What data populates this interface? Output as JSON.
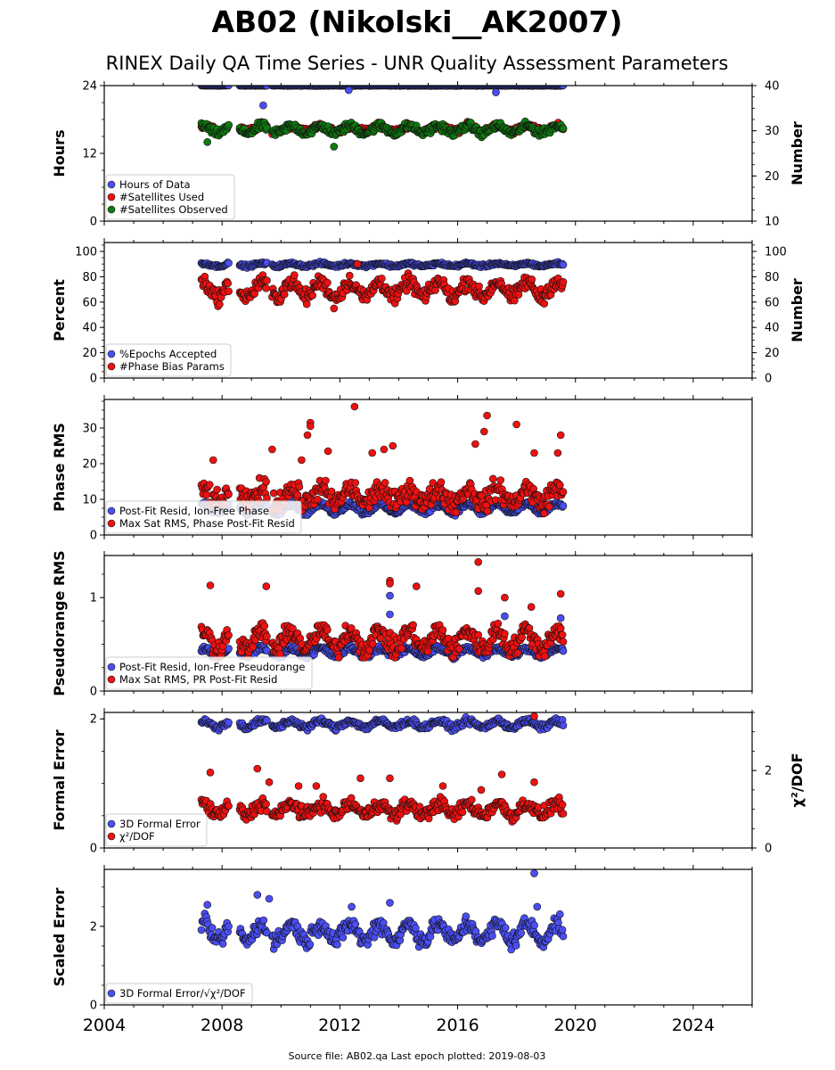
{
  "header": {
    "title": "AB02 (Nikolski__AK2007)",
    "subtitle": "RINEX Daily QA Time Series - UNR Quality Assessment Parameters"
  },
  "footer": {
    "text": "Source file: AB02.qa Last epoch plotted: 2019-08-03"
  },
  "colors": {
    "blue": "#4a4ef2",
    "red": "#ee1111",
    "green": "#0f7a0f",
    "edge": "#111111"
  },
  "x_axis": {
    "range": [
      2004,
      2026
    ],
    "ticks": [
      2004,
      2008,
      2012,
      2016,
      2020,
      2024
    ],
    "tick_labels": [
      "2004",
      "2008",
      "2012",
      "2016",
      "2020",
      "2024"
    ]
  },
  "chart_data": [
    {
      "type": "scatter",
      "ylabel": "Hours",
      "ylabel_right": "Number",
      "ylim": [
        0,
        24
      ],
      "yticks": [
        0,
        12,
        24
      ],
      "ytick_labels": [
        "0",
        "12",
        "24"
      ],
      "ylim_right": [
        10,
        40
      ],
      "yticks_right": [
        10,
        20,
        30,
        40
      ],
      "ytick_labels_right": [
        "10",
        "20",
        "30",
        "40"
      ],
      "legend_position": "lower-left",
      "series": [
        {
          "name": "Hours of Data",
          "color": "blue",
          "axis": "left",
          "base": 24,
          "amp": 0,
          "noise": 0.05,
          "outliers": [
            [
              2009.4,
              20.5
            ],
            [
              2012.3,
              23.2
            ],
            [
              2017.3,
              22.8
            ]
          ]
        },
        {
          "name": "#Satellites Used",
          "color": "red",
          "axis": "right",
          "base": 30.5,
          "amp": 0.6,
          "noise": 0.6,
          "outliers": []
        },
        {
          "name": "#Satellites Observed",
          "color": "green",
          "axis": "right",
          "base": 30.3,
          "amp": 0.8,
          "noise": 0.7,
          "outliers": [
            [
              2007.5,
              27.5
            ],
            [
              2011.8,
              26.5
            ]
          ]
        }
      ]
    },
    {
      "type": "scatter",
      "ylabel": "Percent",
      "ylabel_right": "Number",
      "ylim": [
        0,
        107
      ],
      "yticks": [
        0,
        20,
        40,
        60,
        80,
        100
      ],
      "ytick_labels": [
        "0",
        "20",
        "40",
        "60",
        "80",
        "100"
      ],
      "ylim_right": [
        0,
        107
      ],
      "yticks_right": [
        0,
        20,
        40,
        60,
        80,
        100
      ],
      "ytick_labels_right": [
        "0",
        "20",
        "40",
        "60",
        "80",
        "100"
      ],
      "legend_position": "lower-left",
      "series": [
        {
          "name": "%Epochs Accepted",
          "color": "blue",
          "axis": "left",
          "base": 89.5,
          "amp": 1.0,
          "noise": 1.0,
          "outliers": []
        },
        {
          "name": "#Phase Bias Params",
          "color": "red",
          "axis": "right",
          "base": 70,
          "amp": 6,
          "noise": 5,
          "outliers": [
            [
              2011.8,
              55
            ],
            [
              2012.6,
              90
            ]
          ]
        }
      ]
    },
    {
      "type": "scatter",
      "ylabel": "Phase RMS",
      "ylim": [
        0,
        38
      ],
      "yticks": [
        0,
        10,
        20,
        30
      ],
      "ytick_labels": [
        "0",
        "10",
        "20",
        "30"
      ],
      "legend_position": "lower-left",
      "series": [
        {
          "name": "Post-Fit Resid, Ion-Free Phase",
          "color": "blue",
          "axis": "left",
          "base": 7.5,
          "amp": 1.2,
          "noise": 0.7,
          "outliers": []
        },
        {
          "name": "Max Sat RMS, Phase Post-Fit Resid",
          "color": "red",
          "axis": "left",
          "base": 11,
          "amp": 2,
          "noise": 2.5,
          "outliers": [
            [
              2007.7,
              21
            ],
            [
              2009.7,
              24
            ],
            [
              2010.7,
              21
            ],
            [
              2010.9,
              28
            ],
            [
              2011.0,
              31.5
            ],
            [
              2011.0,
              30.5
            ],
            [
              2011.6,
              23.5
            ],
            [
              2012.5,
              36
            ],
            [
              2013.1,
              23
            ],
            [
              2013.5,
              24
            ],
            [
              2013.8,
              25
            ],
            [
              2016.6,
              25.5
            ],
            [
              2016.9,
              29
            ],
            [
              2017.0,
              33.5
            ],
            [
              2018.0,
              31
            ],
            [
              2018.6,
              23
            ],
            [
              2019.4,
              23
            ],
            [
              2019.5,
              28
            ]
          ]
        }
      ]
    },
    {
      "type": "scatter",
      "ylabel": "Pseudorange RMS",
      "ylim": [
        0,
        1.45
      ],
      "yticks": [
        0,
        1
      ],
      "ytick_labels": [
        "0",
        "1"
      ],
      "legend_position": "lower-left",
      "series": [
        {
          "name": "Post-Fit Resid, Ion-Free Pseudorange",
          "color": "blue",
          "axis": "left",
          "base": 0.42,
          "amp": 0.04,
          "noise": 0.03,
          "outliers": [
            [
              2013.7,
              1.02
            ],
            [
              2013.7,
              0.82
            ],
            [
              2017.6,
              0.8
            ],
            [
              2019.5,
              0.78
            ]
          ]
        },
        {
          "name": "Max Sat RMS, PR Post-Fit Resid",
          "color": "red",
          "axis": "left",
          "base": 0.55,
          "amp": 0.1,
          "noise": 0.09,
          "outliers": [
            [
              2007.6,
              1.13
            ],
            [
              2009.5,
              1.12
            ],
            [
              2013.7,
              1.18
            ],
            [
              2013.7,
              1.15
            ],
            [
              2014.6,
              1.12
            ],
            [
              2016.7,
              1.38
            ],
            [
              2016.7,
              1.07
            ],
            [
              2017.6,
              1.0
            ],
            [
              2018.5,
              0.9
            ],
            [
              2019.5,
              1.04
            ]
          ]
        }
      ]
    },
    {
      "type": "scatter",
      "ylabel": "Formal Error",
      "ylabel_right": "χ²/DOF",
      "ylim": [
        0,
        2.1
      ],
      "yticks": [
        0,
        2
      ],
      "ytick_labels": [
        "0",
        "2"
      ],
      "ylim_right": [
        0,
        3.5
      ],
      "yticks_right": [
        0,
        2
      ],
      "ytick_labels_right": [
        "0",
        "2"
      ],
      "legend_position": "lower-left",
      "series": [
        {
          "name": "3D Formal Error",
          "color": "blue",
          "axis": "left",
          "base": 1.92,
          "amp": 0.05,
          "noise": 0.04,
          "outliers": []
        },
        {
          "name": "χ²/DOF",
          "color": "red",
          "axis": "right",
          "base": 1.0,
          "amp": 0.15,
          "noise": 0.15,
          "outliers": [
            [
              2007.6,
              1.95
            ],
            [
              2009.2,
              2.05
            ],
            [
              2009.6,
              1.7
            ],
            [
              2010.6,
              1.6
            ],
            [
              2011.2,
              1.6
            ],
            [
              2012.7,
              1.8
            ],
            [
              2013.7,
              1.8
            ],
            [
              2015.5,
              1.6
            ],
            [
              2016.8,
              1.5
            ],
            [
              2017.5,
              1.9
            ],
            [
              2018.6,
              1.7
            ],
            [
              2018.6,
              3.4
            ]
          ]
        }
      ]
    },
    {
      "type": "scatter",
      "ylabel": "Scaled Error",
      "ylim": [
        0,
        3.45
      ],
      "yticks": [
        0,
        2
      ],
      "ytick_labels": [
        "0",
        "2"
      ],
      "legend_position": "lower-left",
      "series": [
        {
          "name": "3D Formal Error/√χ²/DOF",
          "color": "blue",
          "axis": "left",
          "base": 1.85,
          "amp": 0.22,
          "noise": 0.18,
          "outliers": [
            [
              2007.5,
              2.55
            ],
            [
              2009.2,
              2.8
            ],
            [
              2009.6,
              2.7
            ],
            [
              2012.4,
              2.5
            ],
            [
              2013.7,
              2.6
            ],
            [
              2018.6,
              3.35
            ],
            [
              2018.7,
              2.5
            ]
          ]
        }
      ]
    }
  ]
}
